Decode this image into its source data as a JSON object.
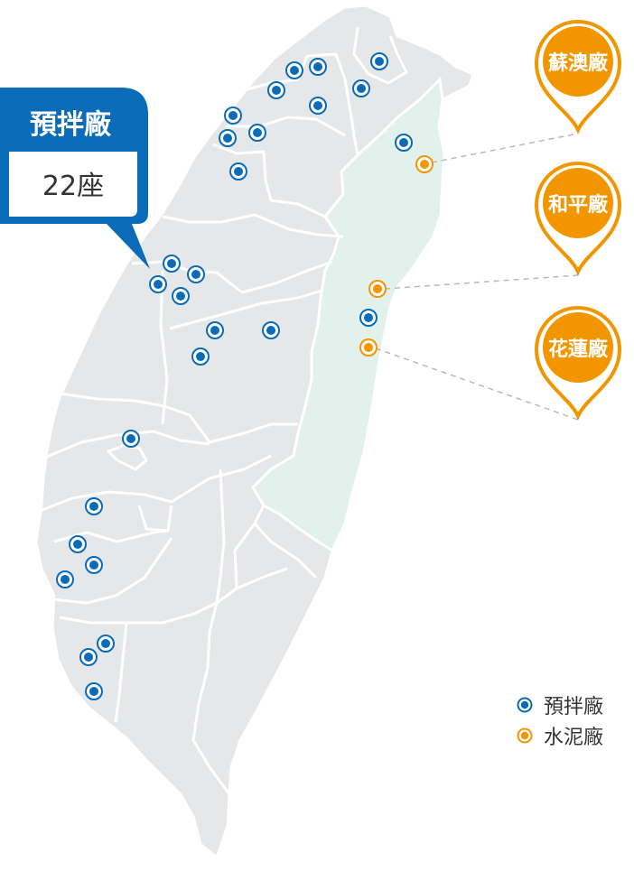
{
  "callout": {
    "title": "預拌廠",
    "count": "22座"
  },
  "colors": {
    "land": "#e6e7e8",
    "border": "#ffffff",
    "east": "#e3f1ed",
    "blue": "#0a6cb8",
    "orange": "#f29600",
    "leader": "#b9b9b9"
  },
  "pins": [
    {
      "label": "蘇澳廠"
    },
    {
      "label": "和平廠"
    },
    {
      "label": "花蓮廠"
    }
  ],
  "legend": [
    {
      "icon": "blue-ring-dot",
      "label": "預拌廠"
    },
    {
      "icon": "orange-ring-dot",
      "label": "水泥廠"
    }
  ]
}
